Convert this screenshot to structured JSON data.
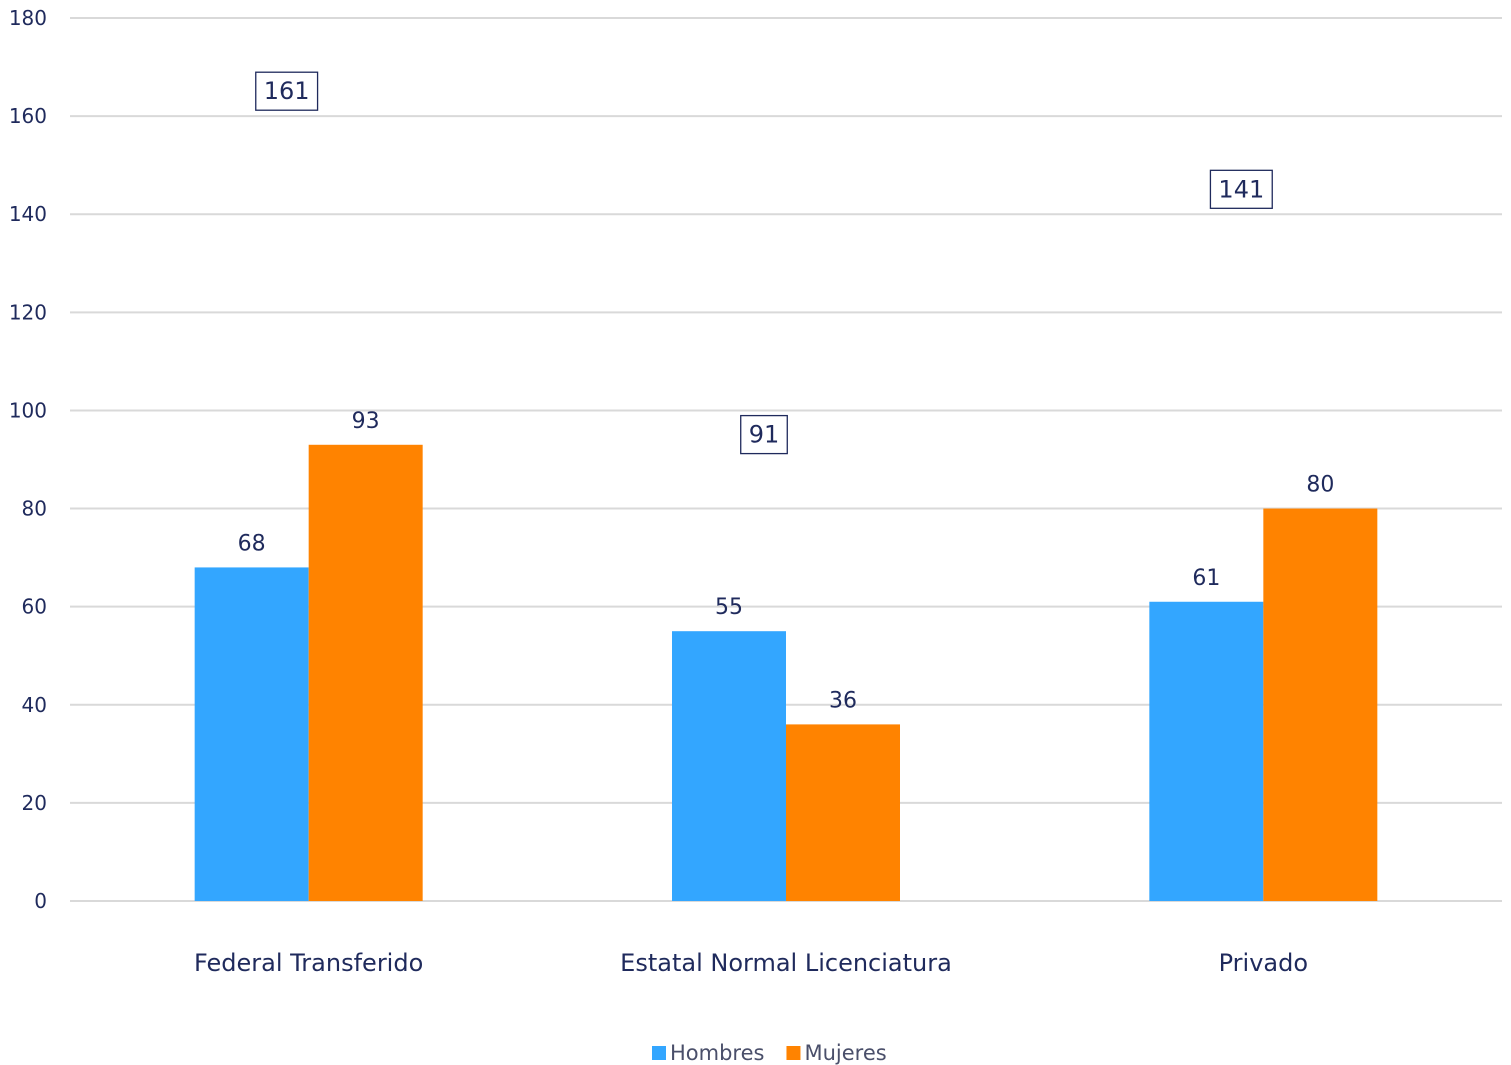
{
  "chart_data": {
    "type": "bar",
    "categories": [
      "Federal Transferido",
      "Estatal Normal Licenciatura",
      "Privado"
    ],
    "series": [
      {
        "name": "Hombres",
        "values": [
          68,
          55,
          61
        ],
        "color": "#33a6ff"
      },
      {
        "name": "Mujeres",
        "values": [
          93,
          36,
          80
        ],
        "color": "#ff8300"
      }
    ],
    "totals": [
      161,
      91,
      141
    ],
    "ylim": [
      0,
      180
    ],
    "yticks": [
      0,
      20,
      40,
      60,
      80,
      100,
      120,
      140,
      160,
      180
    ],
    "grid": true,
    "legend_position": "bottom"
  }
}
